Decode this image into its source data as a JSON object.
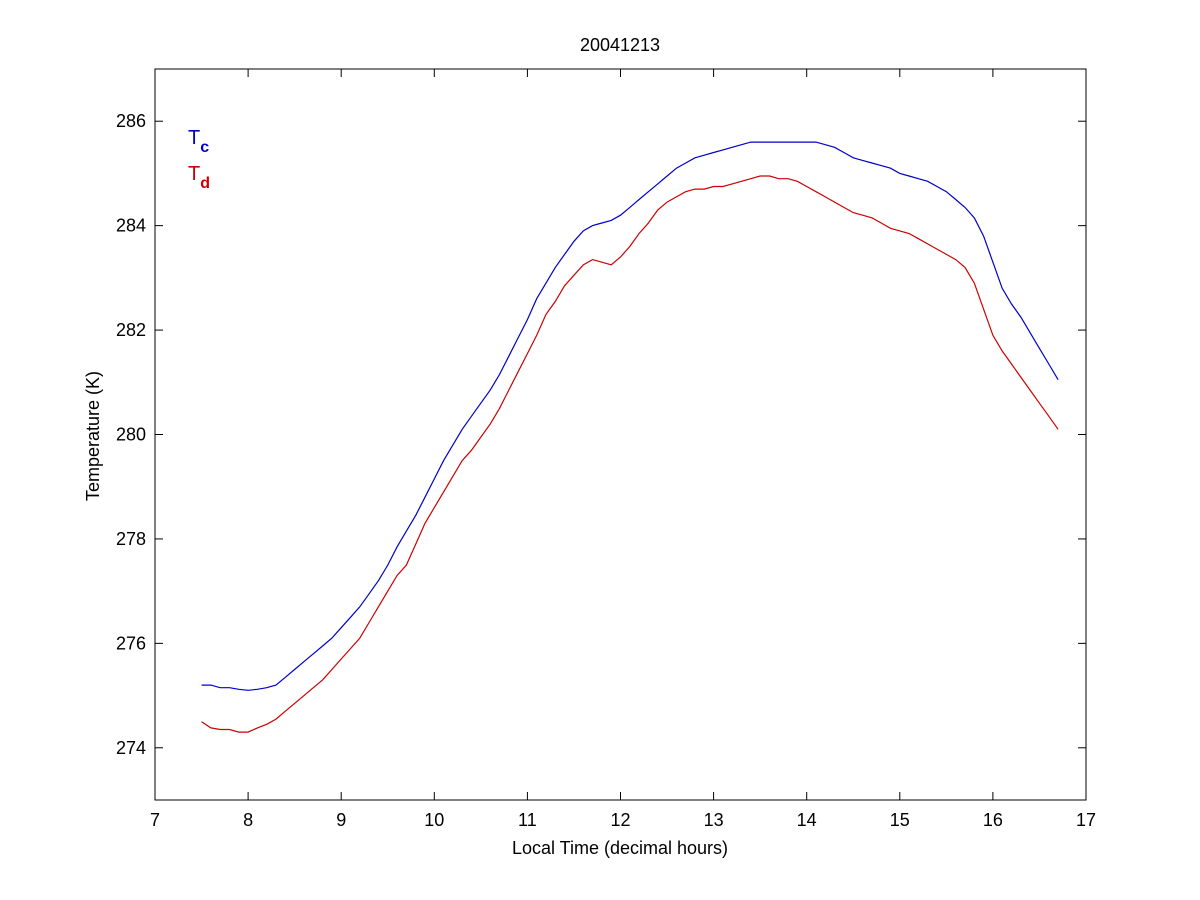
{
  "chart_data": {
    "type": "line",
    "title": "20041213",
    "xlabel": "Local Time (decimal hours)",
    "ylabel": "Temperature (K)",
    "xlim": [
      7,
      17
    ],
    "ylim": [
      273,
      287
    ],
    "xticks": [
      7,
      8,
      9,
      10,
      11,
      12,
      13,
      14,
      15,
      16,
      17
    ],
    "yticks": [
      274,
      276,
      278,
      280,
      282,
      284,
      286
    ],
    "grid": false,
    "legend_position": "top-left",
    "series": [
      {
        "name": "Tc",
        "label_main": "T",
        "label_sub": "c",
        "color": "#0000cc",
        "x": [
          7.5,
          7.6,
          7.7,
          7.8,
          7.9,
          8.0,
          8.1,
          8.2,
          8.3,
          8.4,
          8.5,
          8.6,
          8.7,
          8.8,
          8.9,
          9.0,
          9.1,
          9.2,
          9.3,
          9.4,
          9.5,
          9.6,
          9.7,
          9.8,
          9.9,
          10.0,
          10.1,
          10.2,
          10.3,
          10.4,
          10.5,
          10.6,
          10.7,
          10.8,
          10.9,
          11.0,
          11.1,
          11.2,
          11.3,
          11.4,
          11.5,
          11.6,
          11.7,
          11.8,
          11.9,
          12.0,
          12.1,
          12.2,
          12.3,
          12.4,
          12.5,
          12.6,
          12.7,
          12.8,
          12.9,
          13.0,
          13.1,
          13.2,
          13.3,
          13.4,
          13.5,
          13.6,
          13.7,
          13.8,
          13.9,
          14.0,
          14.1,
          14.2,
          14.3,
          14.4,
          14.5,
          14.6,
          14.7,
          14.8,
          14.9,
          15.0,
          15.1,
          15.2,
          15.3,
          15.4,
          15.5,
          15.6,
          15.7,
          15.8,
          15.9,
          16.0,
          16.1,
          16.2,
          16.3,
          16.4,
          16.5,
          16.6,
          16.7
        ],
        "y": [
          275.2,
          275.2,
          275.15,
          275.15,
          275.12,
          275.1,
          275.12,
          275.15,
          275.2,
          275.35,
          275.5,
          275.65,
          275.8,
          275.95,
          276.1,
          276.3,
          276.5,
          276.7,
          276.95,
          277.2,
          277.5,
          277.85,
          278.15,
          278.45,
          278.8,
          279.15,
          279.5,
          279.8,
          280.1,
          280.35,
          280.6,
          280.85,
          281.15,
          281.5,
          281.85,
          282.2,
          282.6,
          282.9,
          283.2,
          283.45,
          283.7,
          283.9,
          284.0,
          284.05,
          284.1,
          284.2,
          284.35,
          284.5,
          284.65,
          284.8,
          284.95,
          285.1,
          285.2,
          285.3,
          285.35,
          285.4,
          285.45,
          285.5,
          285.55,
          285.6,
          285.6,
          285.6,
          285.6,
          285.6,
          285.6,
          285.6,
          285.6,
          285.55,
          285.5,
          285.4,
          285.3,
          285.25,
          285.2,
          285.15,
          285.1,
          285.0,
          284.95,
          284.9,
          284.85,
          284.75,
          284.65,
          284.5,
          284.35,
          284.15,
          283.8,
          283.3,
          282.8,
          282.5,
          282.25,
          281.95,
          281.65,
          281.35,
          281.05
        ]
      },
      {
        "name": "Td",
        "label_main": "T",
        "label_sub": "d",
        "color": "#cc0000",
        "x": [
          7.5,
          7.6,
          7.7,
          7.8,
          7.9,
          8.0,
          8.1,
          8.2,
          8.3,
          8.4,
          8.5,
          8.6,
          8.7,
          8.8,
          8.9,
          9.0,
          9.1,
          9.2,
          9.3,
          9.4,
          9.5,
          9.6,
          9.7,
          9.8,
          9.9,
          10.0,
          10.1,
          10.2,
          10.3,
          10.4,
          10.5,
          10.6,
          10.7,
          10.8,
          10.9,
          11.0,
          11.1,
          11.2,
          11.3,
          11.4,
          11.5,
          11.6,
          11.7,
          11.8,
          11.9,
          12.0,
          12.1,
          12.2,
          12.3,
          12.4,
          12.5,
          12.6,
          12.7,
          12.8,
          12.9,
          13.0,
          13.1,
          13.2,
          13.3,
          13.4,
          13.5,
          13.6,
          13.7,
          13.8,
          13.9,
          14.0,
          14.1,
          14.2,
          14.3,
          14.4,
          14.5,
          14.6,
          14.7,
          14.8,
          14.9,
          15.0,
          15.1,
          15.2,
          15.3,
          15.4,
          15.5,
          15.6,
          15.7,
          15.8,
          15.9,
          16.0,
          16.1,
          16.2,
          16.3,
          16.4,
          16.5,
          16.6,
          16.7
        ],
        "y": [
          274.5,
          274.38,
          274.35,
          274.35,
          274.3,
          274.3,
          274.38,
          274.45,
          274.55,
          274.7,
          274.85,
          275.0,
          275.15,
          275.3,
          275.5,
          275.7,
          275.9,
          276.1,
          276.4,
          276.7,
          277.0,
          277.3,
          277.5,
          277.9,
          278.3,
          278.6,
          278.9,
          279.2,
          279.5,
          279.7,
          279.95,
          280.2,
          280.5,
          280.85,
          281.2,
          281.55,
          281.9,
          282.3,
          282.55,
          282.85,
          283.05,
          283.25,
          283.35,
          283.3,
          283.25,
          283.4,
          283.6,
          283.85,
          284.05,
          284.3,
          284.45,
          284.55,
          284.65,
          284.7,
          284.7,
          284.75,
          284.75,
          284.8,
          284.85,
          284.9,
          284.95,
          284.95,
          284.9,
          284.9,
          284.85,
          284.75,
          284.65,
          284.55,
          284.45,
          284.35,
          284.25,
          284.2,
          284.15,
          284.05,
          283.95,
          283.9,
          283.85,
          283.75,
          283.65,
          283.55,
          283.45,
          283.35,
          283.2,
          282.9,
          282.4,
          281.9,
          281.6,
          281.35,
          281.1,
          280.85,
          280.6,
          280.35,
          280.1
        ]
      }
    ]
  }
}
